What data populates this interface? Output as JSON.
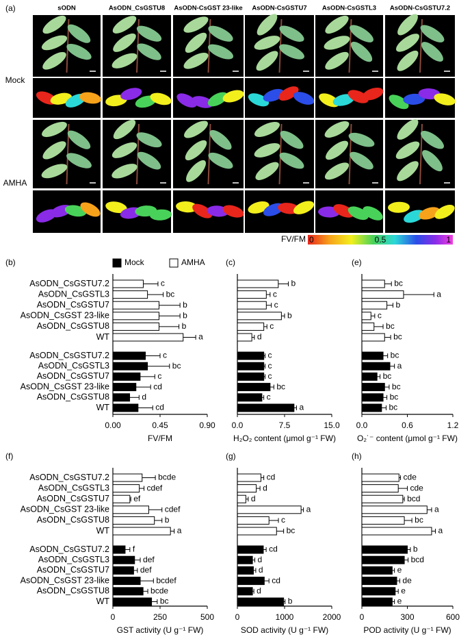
{
  "panel_a": {
    "label": "(a)",
    "columns": [
      "sODN",
      "AsODN_CsGSTU8",
      "AsODN-CsGST 23-like",
      "AsODN-CsGSTU7",
      "AsODN-CsGSTL3",
      "AsODN-CsGSTU7.2"
    ],
    "rows": [
      "Mock",
      "AMHA"
    ],
    "colorbar": {
      "label": "FV/FM",
      "ticks": [
        0,
        0.5,
        1
      ]
    }
  },
  "chart_data": [
    {
      "type": "hbar",
      "panel_label": "(b)",
      "xlabel": "FV/FM",
      "categories": [
        "AsODN_CsGSTU7.2",
        "AsODN_CsGSTL3",
        "AsODN_CsGSTU7",
        "AsODN_CsGST 23-like",
        "AsODN_CsGSTU8",
        "WT"
      ],
      "xlim": [
        0,
        0.9
      ],
      "xticks": [
        {
          "value": 0,
          "label": "0.00"
        },
        0.45,
        {
          "value": 0.9,
          "label": "0.90"
        }
      ],
      "series": [
        {
          "name": "AMHA",
          "color": "#ffffff",
          "values": [
            0.29,
            0.33,
            0.44,
            0.44,
            0.44,
            0.67
          ],
          "errors": [
            0.14,
            0.15,
            0.2,
            0.2,
            0.19,
            0.12
          ],
          "letters": [
            "c",
            "bc",
            "b",
            "b",
            "b",
            "a"
          ]
        },
        {
          "name": "Mock",
          "color": "#000000",
          "values": [
            0.31,
            0.33,
            0.26,
            0.22,
            0.16,
            0.24
          ],
          "errors": [
            0.14,
            0.21,
            0.14,
            0.14,
            0.09,
            0.14
          ],
          "letters": [
            "c",
            "bc",
            "c",
            "cd",
            "d",
            "cd"
          ]
        }
      ]
    },
    {
      "type": "hbar",
      "panel_label": "(c)",
      "xlabel": "H₂O₂ content (μmol g⁻¹ FW)",
      "xlim": [
        0,
        15
      ],
      "xticks": [
        {
          "value": 0,
          "label": "0.0"
        },
        7.5,
        {
          "value": 15,
          "label": "15.0"
        }
      ],
      "series": [
        {
          "color": "#ffffff",
          "values": [
            6.5,
            4.6,
            4.6,
            7.0,
            4.2,
            2.3
          ],
          "errors": [
            1.6,
            0.6,
            0.8,
            0.5,
            0.5,
            0.4
          ],
          "letters": [
            "b",
            "c",
            "c",
            "b",
            "c",
            "d"
          ]
        },
        {
          "color": "#000000",
          "values": [
            4.2,
            4.2,
            4.2,
            5.2,
            3.9,
            9.0
          ],
          "errors": [
            0.2,
            0.2,
            0.2,
            0.6,
            0.3,
            0.4
          ],
          "letters": [
            "c",
            "c",
            "c",
            "bc",
            "c",
            "a"
          ]
        }
      ]
    },
    {
      "type": "hbar",
      "panel_label": "(e)",
      "xlabel": "O₂˙⁻ content (μmol g⁻¹ FW)",
      "xlim": [
        0,
        1.2
      ],
      "xticks": [
        {
          "value": 0,
          "label": "0.0"
        },
        0.6,
        1.2
      ],
      "series": [
        {
          "color": "#ffffff",
          "values": [
            0.3,
            0.55,
            0.33,
            0.12,
            0.16,
            0.3
          ],
          "errors": [
            0.09,
            0.4,
            0.08,
            0.05,
            0.12,
            0.08
          ],
          "letters": [
            "bc",
            "a",
            "b",
            "c",
            "bc",
            "bc"
          ]
        },
        {
          "color": "#000000",
          "values": [
            0.28,
            0.37,
            0.2,
            0.3,
            0.28,
            0.26
          ],
          "errors": [
            0.06,
            0.06,
            0.04,
            0.06,
            0.05,
            0.06
          ],
          "letters": [
            "bc",
            "a",
            "bc",
            "bc",
            "bc",
            "bc"
          ]
        }
      ]
    },
    {
      "type": "hbar",
      "panel_label": "(f)",
      "xlabel": "GST activity (U g⁻¹ FW)",
      "categories": [
        "AsODN_CsGSTU7.2",
        "AsODN_CsGSTL3",
        "AsODN_CsGSTU7",
        "AsODN_CsGST 23-like",
        "AsODN_CsGSTU8",
        "WT"
      ],
      "xlim": [
        0,
        500
      ],
      "xticks": [
        0,
        250,
        500
      ],
      "series": [
        {
          "color": "#ffffff",
          "values": [
            155,
            140,
            90,
            190,
            220,
            305
          ],
          "errors": [
            70,
            25,
            5,
            70,
            40,
            20
          ],
          "letters": [
            "bcde",
            "cdef",
            "ef",
            "cdef",
            "b",
            "a"
          ]
        },
        {
          "color": "#000000",
          "values": [
            65,
            115,
            110,
            145,
            160,
            205
          ],
          "errors": [
            25,
            30,
            20,
            70,
            25,
            30
          ],
          "letters": [
            "f",
            "def",
            "def",
            "bcdef",
            "bcde",
            "bc"
          ]
        }
      ]
    },
    {
      "type": "hbar",
      "panel_label": "(g)",
      "xlabel": "SOD activity (U g⁻¹ FW)",
      "xlim": [
        0,
        2000
      ],
      "xticks": [
        0,
        1000,
        2000
      ],
      "series": [
        {
          "color": "#ffffff",
          "values": [
            500,
            400,
            180,
            1350,
            670,
            830
          ],
          "errors": [
            60,
            80,
            50,
            50,
            200,
            150
          ],
          "letters": [
            "cd",
            "d",
            "d",
            "a",
            "c",
            "bc"
          ]
        },
        {
          "color": "#000000",
          "values": [
            550,
            320,
            340,
            570,
            320,
            980
          ],
          "errors": [
            60,
            50,
            50,
            100,
            30,
            30
          ],
          "letters": [
            "cd",
            "d",
            "d",
            "cd",
            "d",
            "b"
          ]
        }
      ]
    },
    {
      "type": "hbar",
      "panel_label": "(h)",
      "xlabel": "POD activity (U g⁻¹ FW)",
      "xlim": [
        0,
        600
      ],
      "xticks": [
        0,
        300,
        600
      ],
      "series": [
        {
          "color": "#ffffff",
          "values": [
            245,
            240,
            270,
            430,
            280,
            460
          ],
          "errors": [
            10,
            60,
            10,
            30,
            50,
            25
          ],
          "letters": [
            "cde",
            "cde",
            "bcd",
            "a",
            "bc",
            "a"
          ]
        },
        {
          "color": "#000000",
          "values": [
            300,
            280,
            200,
            230,
            220,
            200
          ],
          "errors": [
            20,
            25,
            15,
            20,
            20,
            15
          ],
          "letters": [
            "b",
            "bcd",
            "e",
            "de",
            "e",
            "e"
          ]
        }
      ]
    }
  ]
}
